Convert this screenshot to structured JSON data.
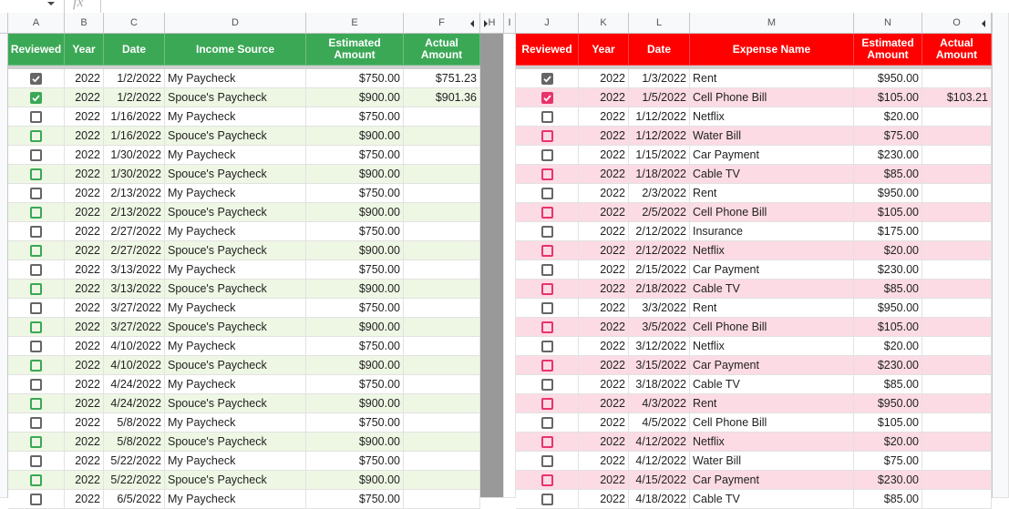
{
  "formula_bar": {
    "label": "fx"
  },
  "columns": [
    "A",
    "B",
    "C",
    "D",
    "E",
    "F",
    "H",
    "I",
    "J",
    "K",
    "L",
    "M",
    "N",
    "O"
  ],
  "income": {
    "headers": [
      "Reviewed",
      "Year",
      "Date",
      "Income Source",
      "Estimated Amount",
      "Actual Amount"
    ],
    "rows": [
      [
        true,
        2022,
        "1/2/2022",
        "My Paycheck",
        "$750.00",
        "$751.23"
      ],
      [
        true,
        2022,
        "1/2/2022",
        "Spouce's Paycheck",
        "$900.00",
        "$901.36"
      ],
      [
        false,
        2022,
        "1/16/2022",
        "My Paycheck",
        "$750.00",
        null
      ],
      [
        false,
        2022,
        "1/16/2022",
        "Spouce's Paycheck",
        "$900.00",
        null
      ],
      [
        false,
        2022,
        "1/30/2022",
        "My Paycheck",
        "$750.00",
        null
      ],
      [
        false,
        2022,
        "1/30/2022",
        "Spouce's Paycheck",
        "$900.00",
        null
      ],
      [
        false,
        2022,
        "2/13/2022",
        "My Paycheck",
        "$750.00",
        null
      ],
      [
        false,
        2022,
        "2/13/2022",
        "Spouce's Paycheck",
        "$900.00",
        null
      ],
      [
        false,
        2022,
        "2/27/2022",
        "My Paycheck",
        "$750.00",
        null
      ],
      [
        false,
        2022,
        "2/27/2022",
        "Spouce's Paycheck",
        "$900.00",
        null
      ],
      [
        false,
        2022,
        "3/13/2022",
        "My Paycheck",
        "$750.00",
        null
      ],
      [
        false,
        2022,
        "3/13/2022",
        "Spouce's Paycheck",
        "$900.00",
        null
      ],
      [
        false,
        2022,
        "3/27/2022",
        "My Paycheck",
        "$750.00",
        null
      ],
      [
        false,
        2022,
        "3/27/2022",
        "Spouce's Paycheck",
        "$900.00",
        null
      ],
      [
        false,
        2022,
        "4/10/2022",
        "My Paycheck",
        "$750.00",
        null
      ],
      [
        false,
        2022,
        "4/10/2022",
        "Spouce's Paycheck",
        "$900.00",
        null
      ],
      [
        false,
        2022,
        "4/24/2022",
        "My Paycheck",
        "$750.00",
        null
      ],
      [
        false,
        2022,
        "4/24/2022",
        "Spouce's Paycheck",
        "$900.00",
        null
      ],
      [
        false,
        2022,
        "5/8/2022",
        "My Paycheck",
        "$750.00",
        null
      ],
      [
        false,
        2022,
        "5/8/2022",
        "Spouce's Paycheck",
        "$900.00",
        null
      ],
      [
        false,
        2022,
        "5/22/2022",
        "My Paycheck",
        "$750.00",
        null
      ],
      [
        false,
        2022,
        "5/22/2022",
        "Spouce's Paycheck",
        "$900.00",
        null
      ],
      [
        false,
        2022,
        "6/5/2022",
        "My Paycheck",
        "$750.00",
        null
      ]
    ]
  },
  "expenses": {
    "headers": [
      "Reviewed",
      "Year",
      "Date",
      "Expense Name",
      "Estimated Amount",
      "Actual Amount"
    ],
    "rows": [
      [
        true,
        2022,
        "1/3/2022",
        "Rent",
        "$950.00",
        null
      ],
      [
        true,
        2022,
        "1/5/2022",
        "Cell Phone Bill",
        "$105.00",
        "$103.21"
      ],
      [
        false,
        2022,
        "1/12/2022",
        "Netflix",
        "$20.00",
        null
      ],
      [
        false,
        2022,
        "1/12/2022",
        "Water Bill",
        "$75.00",
        null
      ],
      [
        false,
        2022,
        "1/15/2022",
        "Car Payment",
        "$230.00",
        null
      ],
      [
        false,
        2022,
        "1/18/2022",
        "Cable TV",
        "$85.00",
        null
      ],
      [
        false,
        2022,
        "2/3/2022",
        "Rent",
        "$950.00",
        null
      ],
      [
        false,
        2022,
        "2/5/2022",
        "Cell Phone Bill",
        "$105.00",
        null
      ],
      [
        false,
        2022,
        "2/12/2022",
        "Insurance",
        "$175.00",
        null
      ],
      [
        false,
        2022,
        "2/12/2022",
        "Netflix",
        "$20.00",
        null
      ],
      [
        false,
        2022,
        "2/15/2022",
        "Car Payment",
        "$230.00",
        null
      ],
      [
        false,
        2022,
        "2/18/2022",
        "Cable TV",
        "$85.00",
        null
      ],
      [
        false,
        2022,
        "3/3/2022",
        "Rent",
        "$950.00",
        null
      ],
      [
        false,
        2022,
        "3/5/2022",
        "Cell Phone Bill",
        "$105.00",
        null
      ],
      [
        false,
        2022,
        "3/12/2022",
        "Netflix",
        "$20.00",
        null
      ],
      [
        false,
        2022,
        "3/15/2022",
        "Car Payment",
        "$230.00",
        null
      ],
      [
        false,
        2022,
        "3/18/2022",
        "Cable TV",
        "$85.00",
        null
      ],
      [
        false,
        2022,
        "4/3/2022",
        "Rent",
        "$950.00",
        null
      ],
      [
        false,
        2022,
        "4/5/2022",
        "Cell Phone Bill",
        "$105.00",
        null
      ],
      [
        false,
        2022,
        "4/12/2022",
        "Netflix",
        "$20.00",
        null
      ],
      [
        false,
        2022,
        "4/12/2022",
        "Water Bill",
        "$75.00",
        null
      ],
      [
        false,
        2022,
        "4/15/2022",
        "Car Payment",
        "$230.00",
        null
      ],
      [
        false,
        2022,
        "4/18/2022",
        "Cable TV",
        "$85.00",
        null
      ]
    ]
  }
}
